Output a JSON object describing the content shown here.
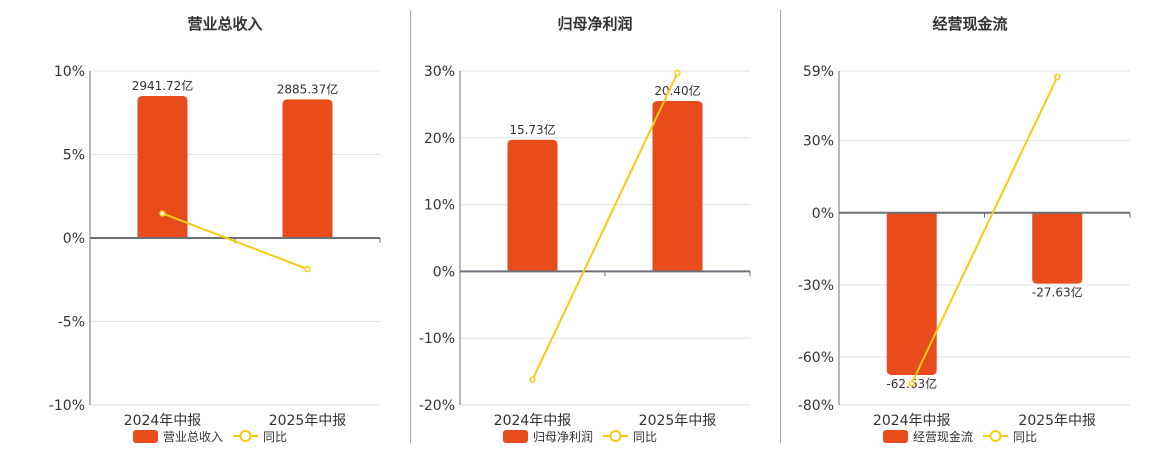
{
  "colors": {
    "bar": "#e84c1a",
    "line": "#f5cc12",
    "grid": "#dfe3ee",
    "axis": "#6e7079",
    "text": "#333333",
    "separator": "#aaaaaa"
  },
  "chart_data": [
    {
      "type": "bar+line",
      "title": "营业总收入",
      "categories": [
        "2024年中报",
        "2025年中报"
      ],
      "series": [
        {
          "name": "营业总收入",
          "type": "bar",
          "values": [
            2941.72,
            2885.37
          ],
          "labels": [
            "2941.72亿",
            "2885.37亿"
          ],
          "bar_heights_pct": [
            8.5,
            8.3
          ]
        },
        {
          "name": "同比",
          "type": "line",
          "values": [
            1.47,
            -1.86
          ]
        }
      ],
      "yticks": [
        "10%",
        "5%",
        "0%",
        "-5%",
        "-10%"
      ],
      "ytick_values": [
        10,
        5,
        0,
        -5,
        -10
      ],
      "ylim": [
        -10,
        10
      ],
      "legend": [
        "营业总收入",
        "同比"
      ]
    },
    {
      "type": "bar+line",
      "title": "归母净利润",
      "categories": [
        "2024年中报",
        "2025年中报"
      ],
      "series": [
        {
          "name": "归母净利润",
          "type": "bar",
          "values": [
            15.73,
            20.4
          ],
          "labels": [
            "15.73亿",
            "20.40亿"
          ],
          "bar_heights_pct": [
            19.7,
            25.5
          ]
        },
        {
          "name": "同比",
          "type": "line",
          "values": [
            -16.2,
            29.7
          ]
        }
      ],
      "yticks": [
        "30%",
        "20%",
        "10%",
        "0%",
        "-10%",
        "-20%"
      ],
      "ytick_values": [
        30,
        20,
        10,
        0,
        -10,
        -20
      ],
      "ylim": [
        -20,
        30
      ],
      "legend": [
        "归母净利润",
        "同比"
      ]
    },
    {
      "type": "bar+line",
      "title": "经营现金流",
      "categories": [
        "2024年中报",
        "2025年中报"
      ],
      "series": [
        {
          "name": "经营现金流",
          "type": "bar",
          "values": [
            -62.63,
            -27.63
          ],
          "labels": [
            "-62.63亿",
            "-27.63亿"
          ],
          "bar_heights_pct": [
            -67.5,
            -29.5
          ]
        },
        {
          "name": "同比",
          "type": "line",
          "values": [
            -71.0,
            56.5
          ]
        }
      ],
      "yticks": [
        "59%",
        "30%",
        "0%",
        "-30%",
        "-60%",
        "-80%"
      ],
      "ytick_values": [
        59,
        30,
        0,
        -30,
        -60,
        -80
      ],
      "ylim": [
        -80,
        59
      ],
      "legend": [
        "经营现金流",
        "同比"
      ]
    }
  ]
}
